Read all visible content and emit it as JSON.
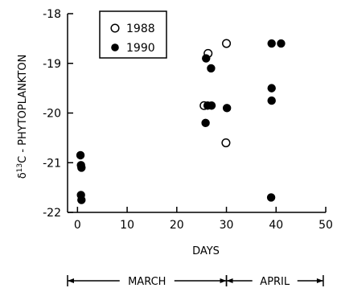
{
  "chart_data": {
    "type": "scatter",
    "title": "",
    "xlabel": "DAYS",
    "ylabel": "δ13C - PHYTOPLANKTON",
    "ylabel_prefix": "δ",
    "ylabel_superscript": "13",
    "ylabel_suffix": "C - PHYTOPLANKTON",
    "xlim": [
      -2,
      50
    ],
    "ylim": [
      -22,
      -18
    ],
    "xticks": [
      0,
      10,
      20,
      30,
      40,
      50
    ],
    "yticks": [
      -18,
      -19,
      -20,
      -21,
      -22
    ],
    "xtick_labels": [
      "0",
      "10",
      "20",
      "30",
      "40",
      "50"
    ],
    "ytick_labels": [
      "-18",
      "-19",
      "-20",
      "-21",
      "-22"
    ],
    "grid": false,
    "legend_position": "top-left",
    "series": [
      {
        "name": "1988",
        "marker": "open-circle",
        "points": [
          {
            "x": 25.5,
            "y": -19.85
          },
          {
            "x": 26.3,
            "y": -18.8
          },
          {
            "x": 30.0,
            "y": -18.6
          },
          {
            "x": 29.9,
            "y": -20.6
          }
        ]
      },
      {
        "name": "1990",
        "marker": "filled-circle",
        "points": [
          {
            "x": 0.6,
            "y": -20.85
          },
          {
            "x": 0.7,
            "y": -21.05
          },
          {
            "x": 0.8,
            "y": -21.1
          },
          {
            "x": 0.7,
            "y": -21.65
          },
          {
            "x": 0.8,
            "y": -21.75
          },
          {
            "x": 25.9,
            "y": -18.9
          },
          {
            "x": 26.9,
            "y": -19.1
          },
          {
            "x": 26.2,
            "y": -19.85
          },
          {
            "x": 27.0,
            "y": -19.85
          },
          {
            "x": 25.8,
            "y": -20.2
          },
          {
            "x": 30.1,
            "y": -19.9
          },
          {
            "x": 39.1,
            "y": -18.6
          },
          {
            "x": 41.0,
            "y": -18.6
          },
          {
            "x": 39.1,
            "y": -19.5
          },
          {
            "x": 39.1,
            "y": -19.75
          },
          {
            "x": 39.0,
            "y": -21.7
          }
        ]
      }
    ],
    "periods": [
      {
        "label": "MARCH",
        "start": -2,
        "end": 30
      },
      {
        "label": "APRIL",
        "start": 30,
        "end": 49.5
      }
    ]
  }
}
